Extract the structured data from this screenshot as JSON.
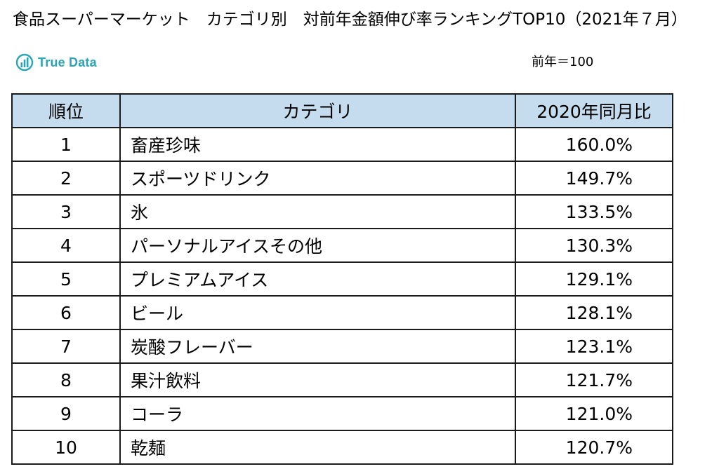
{
  "header": {
    "title": "食品スーパーマーケット　カテゴリ別　対前年金額伸び率ランキングTOP10（2021年７月）",
    "logo_text": "True Data",
    "logo_icon": "bar-chart-circle-icon",
    "base_note": "前年＝100"
  },
  "colors": {
    "header_bg": "#c4dcee",
    "logo": "#2aa5b8",
    "border": "#1a1a1a"
  },
  "table": {
    "columns": [
      "順位",
      "カテゴリ",
      "2020年同月比"
    ],
    "rows": [
      {
        "rank": "1",
        "category": "畜産珍味",
        "ratio": "160.0%"
      },
      {
        "rank": "2",
        "category": "スポーツドリンク",
        "ratio": "149.7%"
      },
      {
        "rank": "3",
        "category": "氷",
        "ratio": "133.5%"
      },
      {
        "rank": "4",
        "category": "パーソナルアイスその他",
        "ratio": "130.3%"
      },
      {
        "rank": "5",
        "category": "プレミアムアイス",
        "ratio": "129.1%"
      },
      {
        "rank": "6",
        "category": "ビール",
        "ratio": "128.1%"
      },
      {
        "rank": "7",
        "category": "炭酸フレーバー",
        "ratio": "123.1%"
      },
      {
        "rank": "8",
        "category": "果汁飲料",
        "ratio": "121.7%"
      },
      {
        "rank": "9",
        "category": "コーラ",
        "ratio": "121.0%"
      },
      {
        "rank": "10",
        "category": "乾麺",
        "ratio": "120.7%"
      }
    ]
  }
}
